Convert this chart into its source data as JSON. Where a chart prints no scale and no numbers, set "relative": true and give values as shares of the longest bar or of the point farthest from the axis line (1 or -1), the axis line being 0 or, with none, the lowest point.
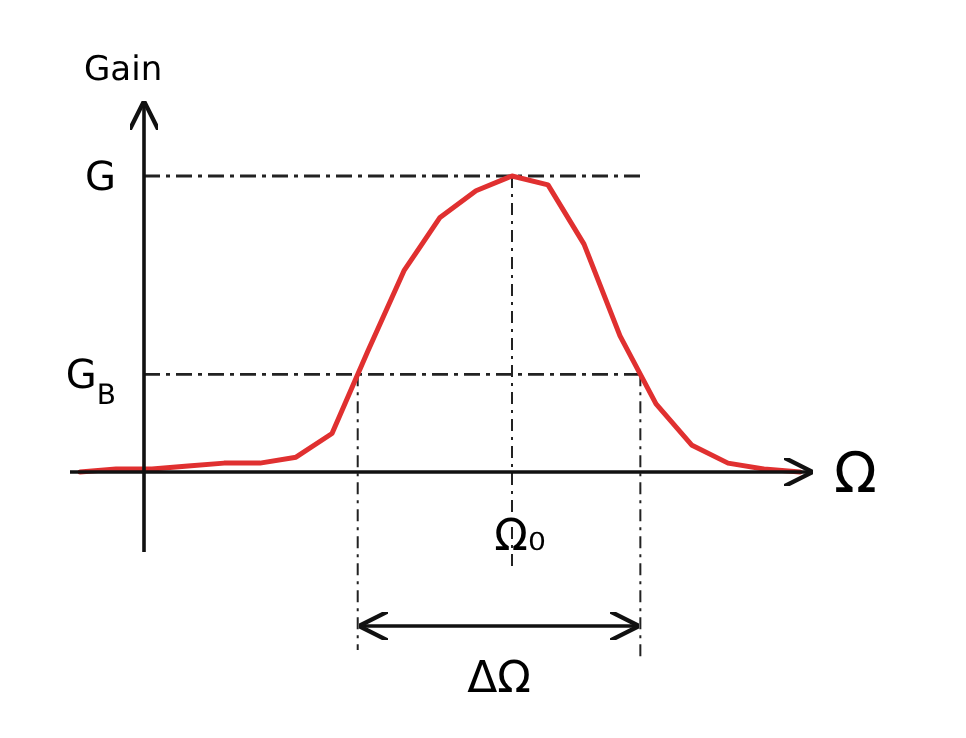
{
  "chart_data": {
    "type": "line",
    "relative": true,
    "ylabel": "Gain",
    "xlabel": "Ω",
    "categories": [
      null,
      null,
      null,
      null,
      null,
      null,
      null,
      null,
      null,
      null,
      null,
      null,
      null,
      null,
      null,
      null,
      null,
      null,
      null,
      null,
      null
    ],
    "series": [
      {
        "color": "#e03030",
        "values": [
          0,
          0.01,
          0.01,
          0.02,
          0.03,
          0.03,
          0.05,
          0.13,
          0.41,
          0.68,
          0.86,
          0.95,
          1,
          0.97,
          0.77,
          0.46,
          0.23,
          0.09,
          0.03,
          0.01,
          0
        ]
      }
    ],
    "ref_lines": [
      {
        "axis": "y",
        "value": 1,
        "label": "G"
      },
      {
        "axis": "y",
        "value": 0.33,
        "label": "G$_{B}$"
      }
    ],
    "annotations": [
      "Ω₀",
      "ΔΩ"
    ]
  }
}
